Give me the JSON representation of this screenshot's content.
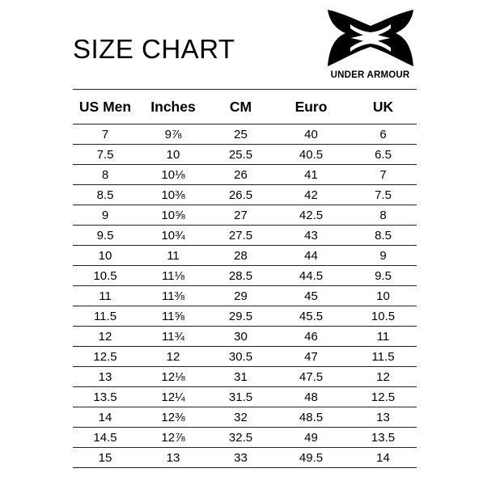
{
  "title": "SIZE CHART",
  "brand": {
    "name": "UNDER ARMOUR",
    "logo_icon": "under-armour-logo-icon",
    "color": "#000000"
  },
  "table": {
    "headers": [
      "US Men",
      "Inches",
      "CM",
      "Euro",
      "UK"
    ],
    "rows": [
      [
        "7",
        "9⅞",
        "25",
        "40",
        "6"
      ],
      [
        "7.5",
        "10",
        "25.5",
        "40.5",
        "6.5"
      ],
      [
        "8",
        "10⅛",
        "26",
        "41",
        "7"
      ],
      [
        "8.5",
        "10⅜",
        "26.5",
        "42",
        "7.5"
      ],
      [
        "9",
        "10⅝",
        "27",
        "42.5",
        "8"
      ],
      [
        "9.5",
        "10¾",
        "27.5",
        "43",
        "8.5"
      ],
      [
        "10",
        "11",
        "28",
        "44",
        "9"
      ],
      [
        "10.5",
        "11⅛",
        "28.5",
        "44.5",
        "9.5"
      ],
      [
        "11",
        "11⅜",
        "29",
        "45",
        "10"
      ],
      [
        "11.5",
        "11⅝",
        "29.5",
        "45.5",
        "10.5"
      ],
      [
        "12",
        "11¾",
        "30",
        "46",
        "11"
      ],
      [
        "12.5",
        "12",
        "30.5",
        "47",
        "11.5"
      ],
      [
        "13",
        "12⅛",
        "31",
        "47.5",
        "12"
      ],
      [
        "13.5",
        "12¼",
        "31.5",
        "48",
        "12.5"
      ],
      [
        "14",
        "12⅜",
        "32",
        "48.5",
        "13"
      ],
      [
        "14.5",
        "12⅞",
        "32.5",
        "49",
        "13.5"
      ],
      [
        "15",
        "13",
        "33",
        "49.5",
        "14"
      ]
    ]
  }
}
